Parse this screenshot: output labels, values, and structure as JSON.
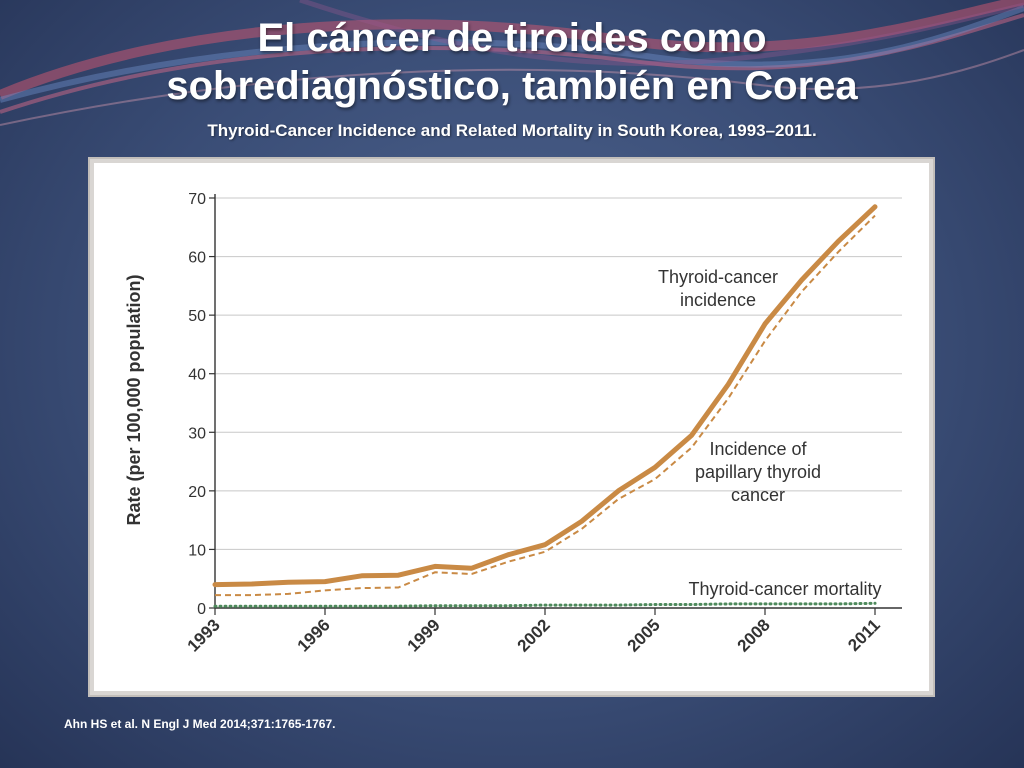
{
  "slide": {
    "title_line1": "El cáncer de tiroides como",
    "title_line2": "sobrediagnóstico, también en Corea",
    "subtitle": "Thyroid-Cancer Incidence and Related Mortality in South Korea, 1993–2011.",
    "citation": "Ahn HS et al. N Engl J Med 2014;371:1765-1767."
  },
  "colors": {
    "incidence": "#c98a45",
    "papillary": "#c98a45",
    "mortality": "#4e8a5c",
    "grid": "#c8c8c8",
    "axis": "#333333"
  },
  "chart_data": {
    "type": "line",
    "title": "",
    "xlabel": "",
    "ylabel": "Rate (per 100,000 population)",
    "xlim": [
      1993,
      2011
    ],
    "ylim": [
      0,
      70
    ],
    "x_ticks": [
      "1993",
      "1996",
      "1999",
      "2002",
      "2005",
      "2008",
      "2011"
    ],
    "y_ticks": [
      "0",
      "10",
      "20",
      "30",
      "40",
      "50",
      "60",
      "70"
    ],
    "grid": true,
    "x": [
      1993,
      1994,
      1995,
      1996,
      1997,
      1998,
      1999,
      2000,
      2001,
      2002,
      2003,
      2004,
      2005,
      2006,
      2007,
      2008,
      2009,
      2010,
      2011
    ],
    "series": [
      {
        "name": "Thyroid-cancer incidence",
        "label_lines": [
          "Thyroid-cancer",
          "incidence"
        ],
        "style": "solid-thick",
        "values": [
          4.0,
          4.1,
          4.4,
          4.5,
          5.5,
          5.6,
          7.1,
          6.8,
          9.1,
          10.8,
          14.8,
          20.0,
          24.0,
          29.5,
          38.2,
          48.5,
          56.0,
          62.6,
          68.5
        ]
      },
      {
        "name": "Incidence of papillary thyroid cancer",
        "label_lines": [
          "Incidence of",
          "papillary thyroid",
          "cancer"
        ],
        "style": "dashed",
        "values": [
          2.2,
          2.2,
          2.4,
          3.0,
          3.4,
          3.5,
          6.1,
          5.8,
          7.9,
          9.6,
          13.5,
          18.6,
          22.0,
          27.4,
          35.8,
          45.6,
          54.0,
          60.8,
          67.0
        ]
      },
      {
        "name": "Thyroid-cancer mortality",
        "label_lines": [
          "Thyroid-cancer mortality"
        ],
        "style": "dotted",
        "values": [
          0.3,
          0.3,
          0.3,
          0.3,
          0.3,
          0.3,
          0.4,
          0.4,
          0.4,
          0.5,
          0.5,
          0.5,
          0.6,
          0.6,
          0.7,
          0.7,
          0.7,
          0.7,
          0.8
        ]
      }
    ]
  }
}
